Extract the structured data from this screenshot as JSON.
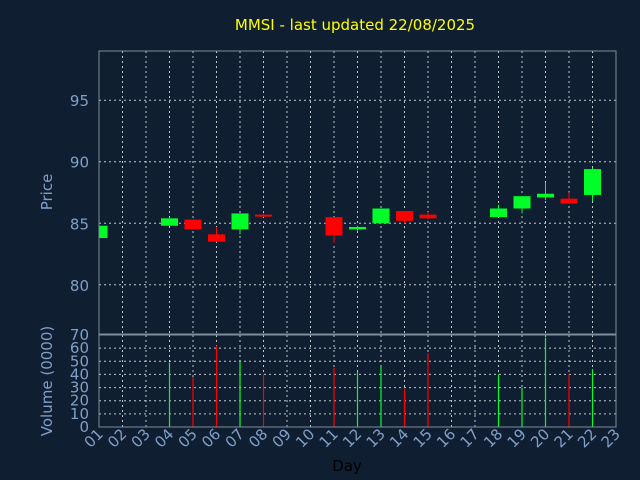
{
  "chart_data": [
    {
      "type": "candlestick",
      "title": "MMSI - last updated 22/08/2025",
      "ylabel": "Price",
      "ylim": [
        76,
        99
      ],
      "y_ticks": [
        80,
        85,
        90,
        95
      ],
      "grid": true,
      "colors": {
        "up": "#00ff28",
        "down": "#ff0000",
        "title": "#ffff00",
        "axis_text": "#7fa0c8"
      },
      "days": [
        {
          "day": "01",
          "open": 83.8,
          "high": 84.8,
          "low": 83.8,
          "close": 84.8
        },
        {
          "day": "04",
          "open": 84.8,
          "high": 85.4,
          "low": 84.8,
          "close": 85.4
        },
        {
          "day": "05",
          "open": 85.3,
          "high": 85.3,
          "low": 84.5,
          "close": 84.5
        },
        {
          "day": "06",
          "open": 84.1,
          "high": 84.7,
          "low": 83.5,
          "close": 83.5
        },
        {
          "day": "07",
          "open": 84.5,
          "high": 85.8,
          "low": 84.1,
          "close": 85.8
        },
        {
          "day": "08",
          "open": 85.7,
          "high": 85.8,
          "low": 85.5,
          "close": 85.6
        },
        {
          "day": "11",
          "open": 85.5,
          "high": 85.5,
          "low": 83.4,
          "close": 84.0
        },
        {
          "day": "12",
          "open": 84.5,
          "high": 84.8,
          "low": 84.4,
          "close": 84.7
        },
        {
          "day": "13",
          "open": 85.0,
          "high": 86.2,
          "low": 85.0,
          "close": 86.2
        },
        {
          "day": "14",
          "open": 86.0,
          "high": 86.0,
          "low": 85.0,
          "close": 85.2
        },
        {
          "day": "15",
          "open": 85.7,
          "high": 85.9,
          "low": 85.3,
          "close": 85.4
        },
        {
          "day": "18",
          "open": 85.5,
          "high": 86.5,
          "low": 85.5,
          "close": 86.2
        },
        {
          "day": "19",
          "open": 86.2,
          "high": 87.2,
          "low": 85.8,
          "close": 87.2
        },
        {
          "day": "20",
          "open": 87.1,
          "high": 88.3,
          "low": 86.9,
          "close": 87.4
        },
        {
          "day": "21",
          "open": 87.0,
          "high": 87.5,
          "low": 86.6,
          "close": 86.6
        },
        {
          "day": "22",
          "open": 87.3,
          "high": 89.5,
          "low": 86.8,
          "close": 89.4
        }
      ]
    },
    {
      "type": "bar",
      "ylabel": "Volume (0000)",
      "xlabel": "Day",
      "ylim": [
        0,
        70
      ],
      "y_ticks": [
        0,
        10,
        20,
        30,
        40,
        50,
        60,
        70
      ],
      "categories": [
        "01",
        "02",
        "03",
        "04",
        "05",
        "06",
        "07",
        "08",
        "09",
        "10",
        "11",
        "12",
        "13",
        "14",
        "15",
        "16",
        "17",
        "18",
        "19",
        "20",
        "21",
        "22",
        "23"
      ],
      "grid": true,
      "bars": [
        {
          "day": "04",
          "value": 49,
          "direction": "up"
        },
        {
          "day": "05",
          "value": 38,
          "direction": "down"
        },
        {
          "day": "06",
          "value": 62,
          "direction": "down"
        },
        {
          "day": "07",
          "value": 50,
          "direction": "up"
        },
        {
          "day": "08",
          "value": 40,
          "direction": "down"
        },
        {
          "day": "11",
          "value": 45,
          "direction": "down"
        },
        {
          "day": "12",
          "value": 42,
          "direction": "up"
        },
        {
          "day": "13",
          "value": 46,
          "direction": "up"
        },
        {
          "day": "14",
          "value": 29,
          "direction": "down"
        },
        {
          "day": "15",
          "value": 56,
          "direction": "down"
        },
        {
          "day": "18",
          "value": 40,
          "direction": "up"
        },
        {
          "day": "19",
          "value": 30,
          "direction": "up"
        },
        {
          "day": "20",
          "value": 68,
          "direction": "up"
        },
        {
          "day": "21",
          "value": 40,
          "direction": "down"
        },
        {
          "day": "22",
          "value": 44,
          "direction": "up"
        }
      ]
    }
  ]
}
